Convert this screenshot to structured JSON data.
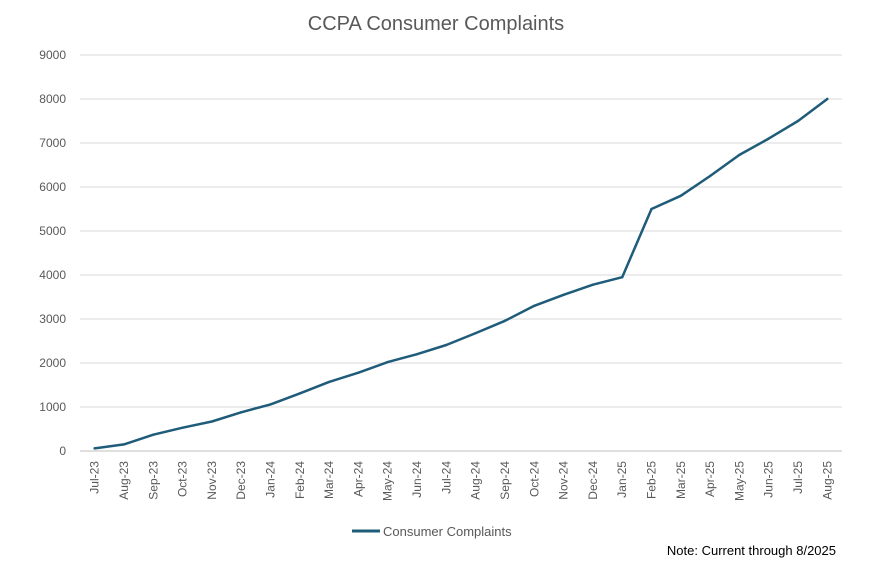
{
  "chart_data": {
    "type": "line",
    "title": "CCPA Consumer Complaints",
    "xlabel": "",
    "ylabel": "",
    "categories": [
      "Jul-23",
      "Aug-23",
      "Sep-23",
      "Oct-23",
      "Nov-23",
      "Dec-23",
      "Jan-24",
      "Feb-24",
      "Mar-24",
      "Apr-24",
      "May-24",
      "Jun-24",
      "Jul-24",
      "Aug-24",
      "Sep-24",
      "Oct-24",
      "Nov-24",
      "Dec-24",
      "Jan-25",
      "Feb-25",
      "Mar-25",
      "Apr-25",
      "May-25",
      "Jun-25",
      "Jul-25",
      "Aug-25"
    ],
    "series": [
      {
        "name": "Consumer Complaints",
        "color": "#1f5c7a",
        "values": [
          60,
          150,
          370,
          530,
          670,
          880,
          1060,
          1310,
          1570,
          1780,
          2020,
          2200,
          2410,
          2680,
          2960,
          3300,
          3550,
          3780,
          3950,
          5500,
          5800,
          6250,
          6730,
          7100,
          7500,
          8000
        ]
      }
    ],
    "ylim": [
      0,
      9000
    ],
    "yticks": [
      0,
      1000,
      2000,
      3000,
      4000,
      5000,
      6000,
      7000,
      8000,
      9000
    ],
    "grid": true,
    "legend_position": "bottom"
  },
  "note": "Note: Current through 8/2025"
}
